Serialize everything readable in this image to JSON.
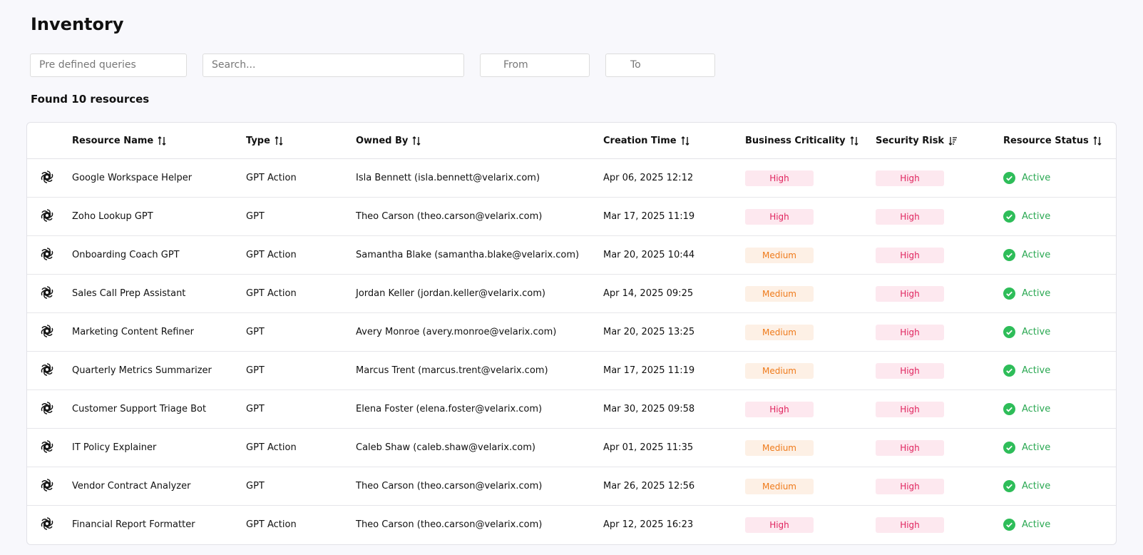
{
  "header": {
    "title": "Inventory"
  },
  "filters": {
    "queries": "Pre defined queries",
    "search": "Search...",
    "from": "From",
    "to": "To"
  },
  "summary": "Found 10 resources",
  "table": {
    "columns": [
      "Resource Name",
      "Type",
      "Owned By",
      "Creation Time",
      "Business Criticality",
      "Security Risk",
      "Resource Status"
    ],
    "rows": [
      [
        "Google Workspace Helper",
        "GPT Action",
        "Isla Bennett (isla.bennett@velarix.com)",
        "Apr 06, 2025 12:12",
        "High",
        "High",
        "Active"
      ],
      [
        "Zoho Lookup GPT",
        "GPT",
        "Theo Carson (theo.carson@velarix.com)",
        "Mar 17, 2025 11:19",
        "High",
        "High",
        "Active"
      ],
      [
        "Onboarding Coach GPT",
        "GPT Action",
        "Samantha Blake (samantha.blake@velarix.com)",
        "Mar 20, 2025 10:44",
        "Medium",
        "High",
        "Active"
      ],
      [
        "Sales Call Prep Assistant",
        "GPT Action",
        "Jordan Keller (jordan.keller@velarix.com)",
        "Apr 14, 2025 09:25",
        "Medium",
        "High",
        "Active"
      ],
      [
        "Marketing Content Refiner",
        "GPT",
        "Avery Monroe (avery.monroe@velarix.com)",
        "Mar 20, 2025 13:25",
        "Medium",
        "High",
        "Active"
      ],
      [
        "Quarterly Metrics Summarizer",
        "GPT",
        "Marcus Trent (marcus.trent@velarix.com)",
        "Mar 17, 2025 11:19",
        "Medium",
        "High",
        "Active"
      ],
      [
        "Customer Support Triage Bot",
        "GPT",
        "Elena Foster (elena.foster@velarix.com)",
        "Mar 30, 2025 09:58",
        "High",
        "High",
        "Active"
      ],
      [
        "IT Policy Explainer",
        "GPT Action",
        "Caleb Shaw (caleb.shaw@velarix.com)",
        "Apr 01, 2025 11:35",
        "Medium",
        "High",
        "Active"
      ],
      [
        "Vendor Contract Analyzer",
        "GPT",
        "Theo Carson (theo.carson@velarix.com)",
        "Mar 26, 2025 12:56",
        "Medium",
        "High",
        "Active"
      ],
      [
        "Financial Report Formatter",
        "GPT Action",
        "Theo Carson (theo.carson@velarix.com)",
        "Apr 12, 2025 16:23",
        "High",
        "High",
        "Active"
      ]
    ]
  }
}
